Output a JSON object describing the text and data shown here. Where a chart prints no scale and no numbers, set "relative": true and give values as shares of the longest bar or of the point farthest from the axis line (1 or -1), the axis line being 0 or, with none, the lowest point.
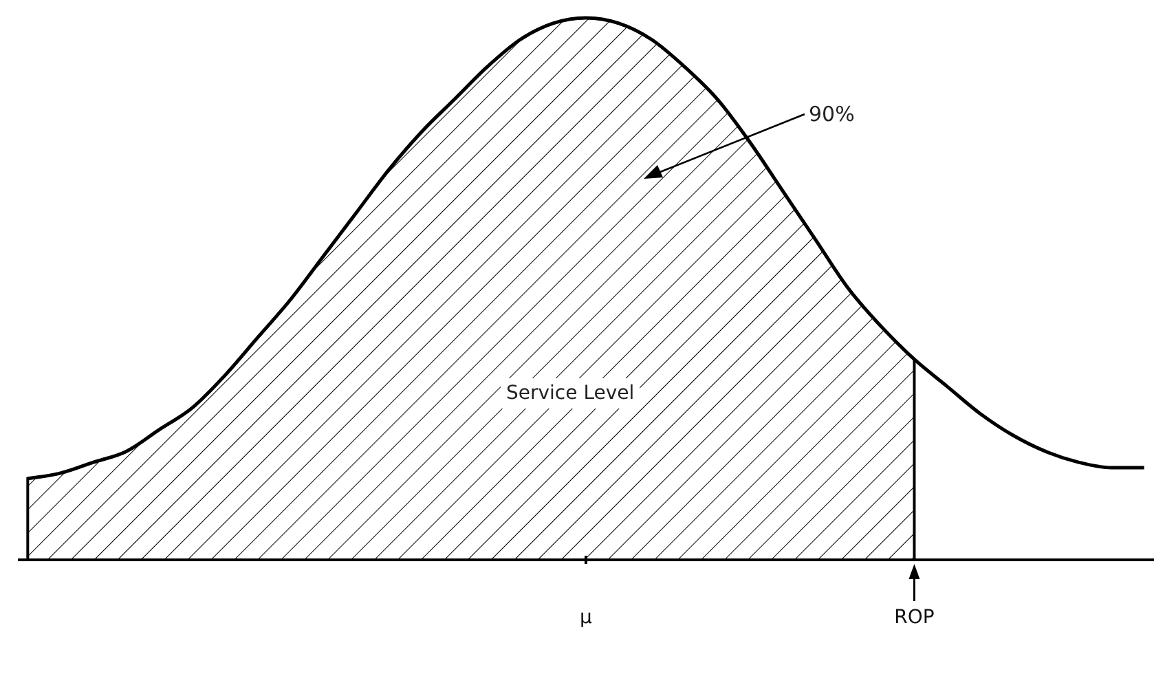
{
  "chart_data": {
    "type": "area",
    "relative": true,
    "legend": false,
    "grid": false,
    "categories": [
      null,
      null,
      null,
      null,
      null,
      null,
      null,
      null,
      null,
      null,
      null,
      null,
      null,
      null,
      null,
      null,
      null,
      "μ",
      null,
      null,
      null,
      null,
      null,
      null,
      null,
      null,
      null,
      "ROP",
      null,
      null,
      null,
      null,
      null,
      null,
      null
    ],
    "series": [
      {
        "type": "area",
        "color": "#000000",
        "values": [
          0.15,
          0.16,
          0.18,
          0.2,
          0.24,
          0.28,
          0.34,
          0.41,
          0.48,
          0.56,
          0.64,
          0.72,
          0.79,
          0.85,
          0.91,
          0.96,
          0.99,
          1.0,
          0.99,
          0.96,
          0.91,
          0.85,
          0.77,
          0.68,
          0.59,
          0.5,
          0.43,
          0.37,
          null,
          null,
          null,
          null,
          null,
          null,
          null
        ]
      },
      {
        "type": "line",
        "color": "#000000",
        "values": [
          0.15,
          0.16,
          0.18,
          0.2,
          0.24,
          0.28,
          0.34,
          0.41,
          0.48,
          0.56,
          0.64,
          0.72,
          0.79,
          0.85,
          0.91,
          0.96,
          0.99,
          1.0,
          0.99,
          0.96,
          0.91,
          0.85,
          0.77,
          0.68,
          0.59,
          0.5,
          0.43,
          0.37,
          0.32,
          0.27,
          0.23,
          0.2,
          0.18,
          0.17,
          0.17
        ]
      }
    ],
    "annotations": [
      "90%",
      "Service Level"
    ]
  }
}
